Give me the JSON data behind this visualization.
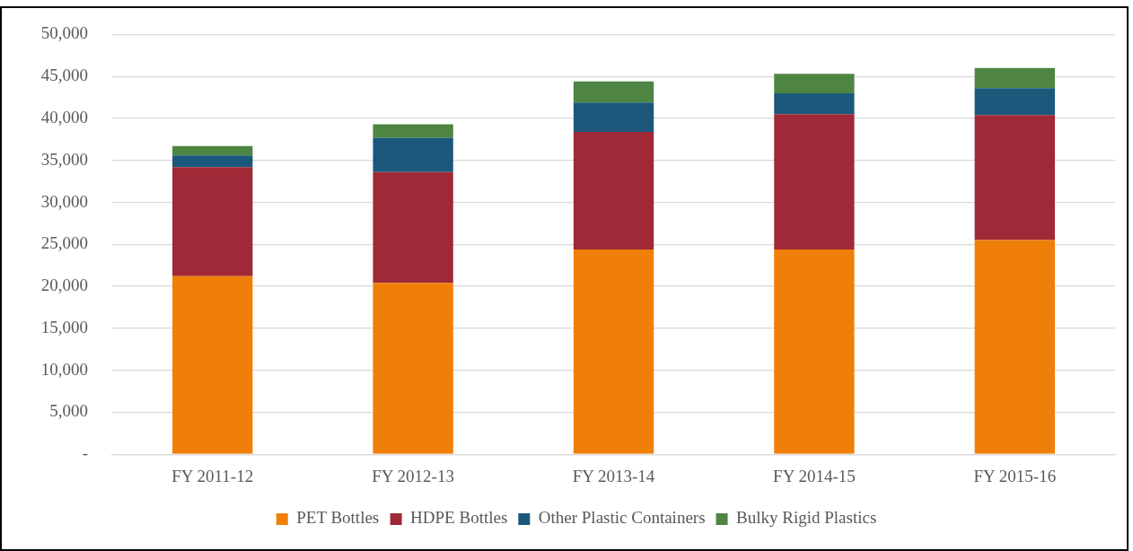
{
  "chart_data": {
    "type": "bar",
    "stacked": true,
    "categories": [
      "FY 2011-12",
      "FY 2012-13",
      "FY 2013-14",
      "FY 2014-15",
      "FY 2015-16"
    ],
    "series": [
      {
        "name": "PET Bottles",
        "color": "#f07f09",
        "values": [
          21200,
          20400,
          24400,
          24400,
          25500
        ]
      },
      {
        "name": "HDPE Bottles",
        "color": "#9f2936",
        "values": [
          13000,
          13200,
          14000,
          16100,
          14900
        ]
      },
      {
        "name": "Other Plastic Containers",
        "color": "#1b587c",
        "values": [
          1400,
          4100,
          3500,
          2500,
          3200
        ]
      },
      {
        "name": "Bulky Rigid Plastics",
        "color": "#4e8542",
        "values": [
          1100,
          1600,
          2500,
          2300,
          2400
        ]
      }
    ],
    "ylim": [
      0,
      50000
    ],
    "yticks": [
      {
        "value": 0,
        "label": "-"
      },
      {
        "value": 5000,
        "label": "5,000"
      },
      {
        "value": 10000,
        "label": "10,000"
      },
      {
        "value": 15000,
        "label": "15,000"
      },
      {
        "value": 20000,
        "label": "20,000"
      },
      {
        "value": 25000,
        "label": "25,000"
      },
      {
        "value": 30000,
        "label": "30,000"
      },
      {
        "value": 35000,
        "label": "35,000"
      },
      {
        "value": 40000,
        "label": "40,000"
      },
      {
        "value": 45000,
        "label": "45,000"
      },
      {
        "value": 50000,
        "label": "50,000"
      }
    ],
    "grid": "y",
    "legend": "bottom"
  }
}
